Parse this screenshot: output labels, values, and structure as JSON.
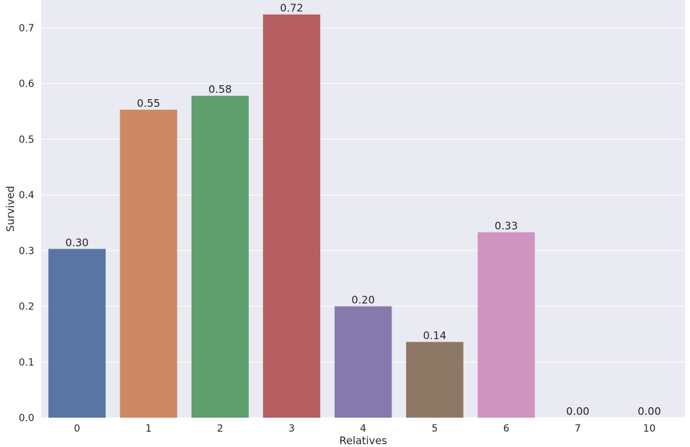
{
  "chart_data": {
    "type": "bar",
    "xlabel": "Relatives",
    "ylabel": "Survived",
    "categories": [
      "0",
      "1",
      "2",
      "3",
      "4",
      "5",
      "6",
      "7",
      "10"
    ],
    "values": [
      0.303,
      0.553,
      0.578,
      0.724,
      0.2,
      0.136,
      0.333,
      0.0,
      0.0
    ],
    "value_labels": [
      "0.30",
      "0.55",
      "0.58",
      "0.72",
      "0.20",
      "0.14",
      "0.33",
      "0.00",
      "0.00"
    ],
    "ylim": [
      0,
      0.75
    ],
    "yticks": [
      0.0,
      0.1,
      0.2,
      0.3,
      0.4,
      0.5,
      0.6,
      0.7
    ],
    "ytick_labels": [
      "0.0",
      "0.1",
      "0.2",
      "0.3",
      "0.4",
      "0.5",
      "0.6",
      "0.7"
    ],
    "colors": [
      "#5875a4",
      "#cc8963",
      "#5f9e6e",
      "#b55d60",
      "#857aab",
      "#8d7866",
      "#d095bf",
      "#8c8c8c",
      "#c4b07c"
    ],
    "background": "#eaeaf2",
    "gridline_color": "#ffffff",
    "grid": true
  }
}
